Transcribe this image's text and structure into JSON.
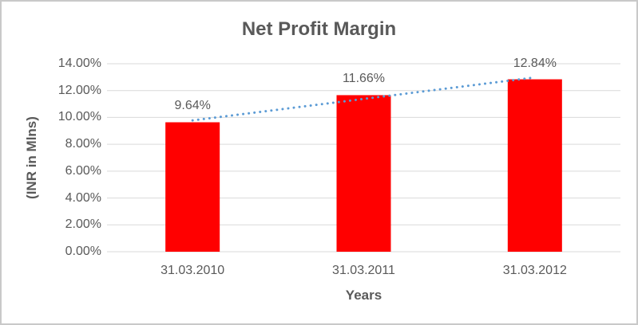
{
  "window": {
    "background": "#FFFFFF",
    "border_color": "#C9C9C9"
  },
  "colors": {
    "text": "#595959",
    "gridline": "#D9D9D9",
    "axis_line": "#D9D9D9",
    "bar": "#FF0000",
    "trendline": "#5B9BD5"
  },
  "chart_data": {
    "type": "bar",
    "title": "Net Profit Margin",
    "xlabel": "Years",
    "ylabel": "(INR in Mlns)",
    "categories": [
      "31.03.2010",
      "31.03.2011",
      "31.03.2012"
    ],
    "values": [
      9.64,
      11.66,
      12.84
    ],
    "data_labels": [
      "9.64%",
      "11.66%",
      "12.84%"
    ],
    "ylim": [
      0,
      14
    ],
    "ytick_step": 2,
    "yticks": [
      {
        "value": 0,
        "label": "0.00%"
      },
      {
        "value": 2,
        "label": "2.00%"
      },
      {
        "value": 4,
        "label": "4.00%"
      },
      {
        "value": 6,
        "label": "6.00%"
      },
      {
        "value": 8,
        "label": "8.00%"
      },
      {
        "value": 10,
        "label": "10.00%"
      },
      {
        "value": 12,
        "label": "12.00%"
      },
      {
        "value": 14,
        "label": "14.00%"
      }
    ],
    "grid": true,
    "legend": "none",
    "series_color": "#FF0000",
    "trendline": {
      "type": "linear",
      "start_value": 9.78,
      "end_value": 12.98,
      "color": "#5B9BD5",
      "line_style": "dotted"
    }
  }
}
